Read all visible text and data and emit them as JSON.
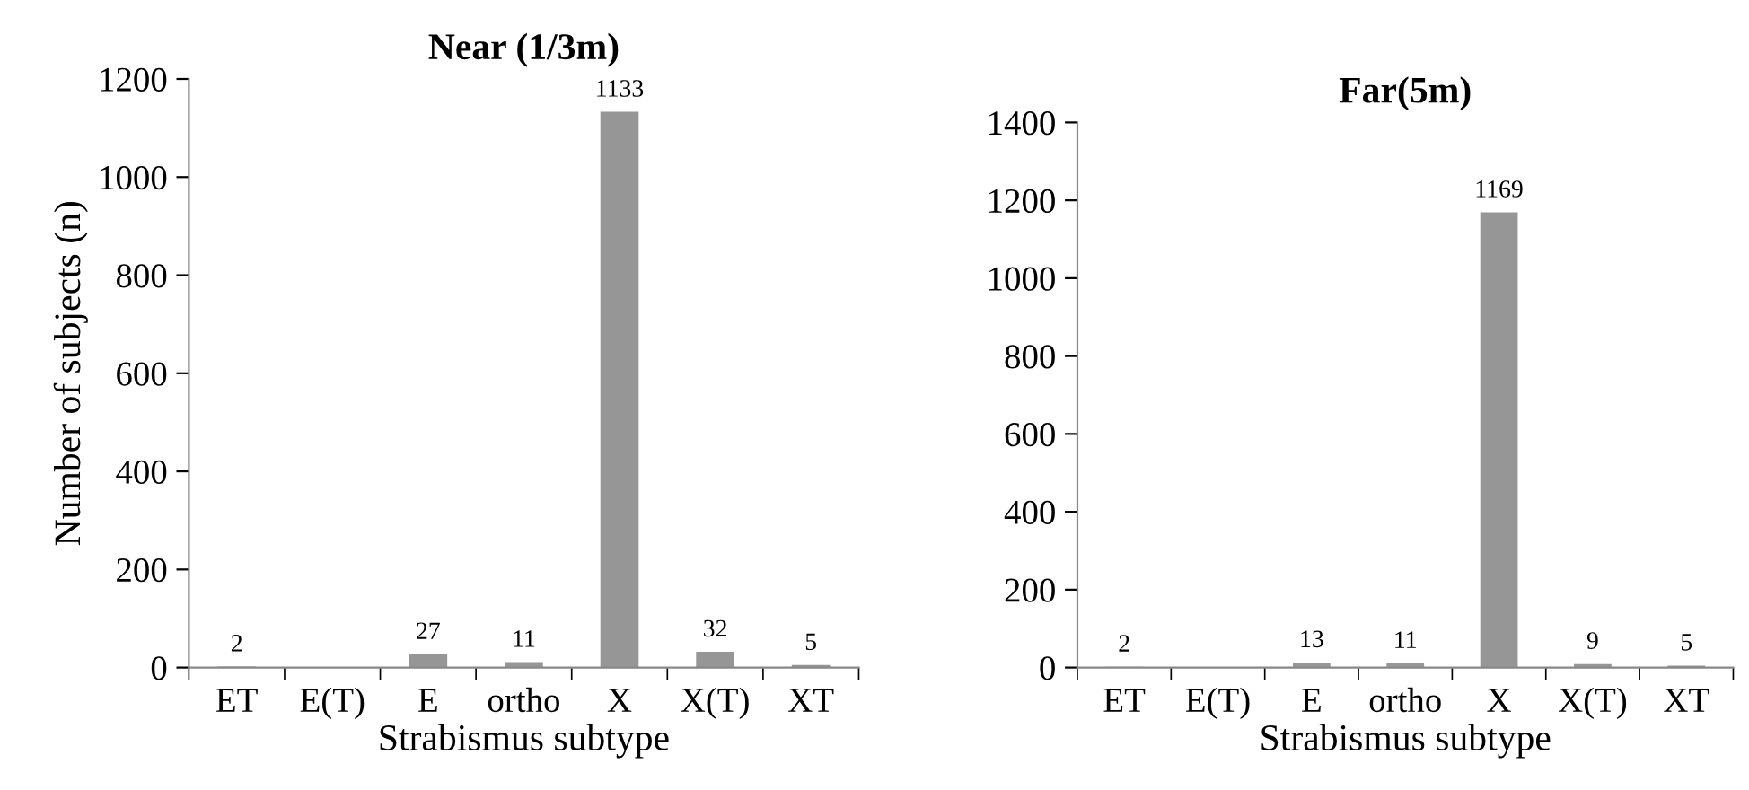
{
  "chart_data": [
    {
      "type": "bar",
      "title": "Near (1/3m)",
      "xlabel": "Strabismus subtype",
      "ylabel": "Number of subjects (n)",
      "categories": [
        "ET",
        "E(T)",
        "E",
        "ortho",
        "X",
        "X(T)",
        "XT"
      ],
      "values": [
        2,
        0,
        27,
        11,
        1133,
        32,
        5
      ],
      "value_labels": [
        "2",
        null,
        "27",
        "11",
        "1133",
        "32",
        "5"
      ],
      "color": "#969696",
      "ylim": [
        0,
        1200
      ],
      "yticks": [
        0,
        200,
        400,
        600,
        800,
        1000,
        1200
      ],
      "grid": false,
      "legend": false
    },
    {
      "type": "bar",
      "title": "Far(5m)",
      "xlabel": "Strabismus subtype",
      "categories": [
        "ET",
        "E(T)",
        "E",
        "ortho",
        "X",
        "X(T)",
        "XT"
      ],
      "values": [
        2,
        0,
        13,
        11,
        1169,
        9,
        5
      ],
      "value_labels": [
        "2",
        null,
        "13",
        "11",
        "1169",
        "9",
        "5"
      ],
      "color": "#969696",
      "ylim": [
        0,
        1400
      ],
      "yticks": [
        0,
        200,
        400,
        600,
        800,
        1000,
        1200,
        1400
      ],
      "grid": false,
      "legend": false
    }
  ]
}
